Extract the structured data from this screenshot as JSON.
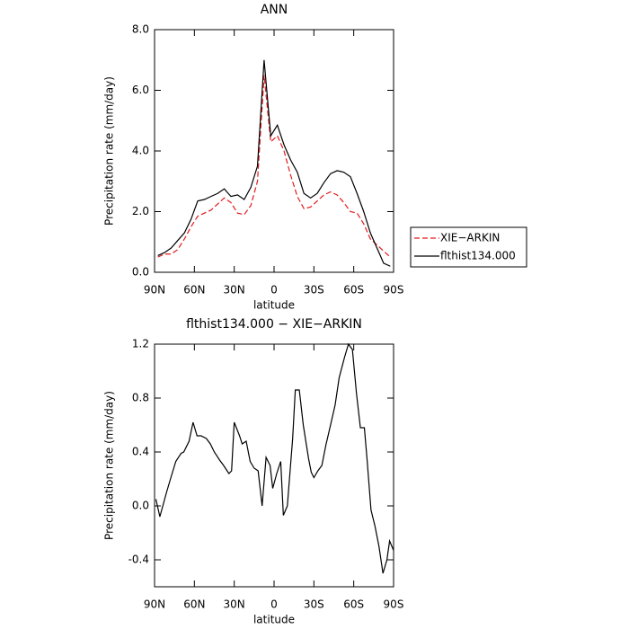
{
  "chart_data": [
    {
      "type": "line",
      "title": "ANN",
      "ylabel": "Precipitation rate (mm/day)",
      "xlabel": "latitude",
      "x": [
        87.5,
        82.5,
        77.5,
        72.5,
        67.5,
        62.5,
        57.5,
        52.5,
        47.5,
        42.5,
        37.5,
        32.5,
        27.5,
        22.5,
        17.5,
        12.5,
        7.5,
        2.5,
        -2.5,
        -7.5,
        -12.5,
        -17.5,
        -22.5,
        -27.5,
        -32.5,
        -37.5,
        -42.5,
        -47.5,
        -52.5,
        -57.5,
        -62.5,
        -67.5,
        -72.5,
        -77.5,
        -82.5,
        -87.5
      ],
      "series": [
        {
          "name": "XIE−ARKIN",
          "color": "#e31a1c",
          "style": "dashed",
          "values": [
            0.5,
            0.6,
            0.6,
            0.75,
            1.1,
            1.5,
            1.85,
            1.95,
            2.05,
            2.25,
            2.45,
            2.3,
            1.95,
            1.9,
            2.2,
            3.0,
            6.5,
            4.3,
            4.5,
            4.0,
            3.2,
            2.5,
            2.1,
            2.15,
            2.35,
            2.55,
            2.65,
            2.55,
            2.3,
            2.0,
            1.95,
            1.6,
            1.1,
            0.9,
            0.7,
            0.5
          ]
        },
        {
          "name": "flthist134.000",
          "color": "#000000",
          "style": "solid",
          "values": [
            0.55,
            0.65,
            0.8,
            1.05,
            1.3,
            1.75,
            2.35,
            2.4,
            2.5,
            2.6,
            2.75,
            2.5,
            2.55,
            2.4,
            2.8,
            3.5,
            7.0,
            4.5,
            4.85,
            4.2,
            3.7,
            3.3,
            2.6,
            2.45,
            2.6,
            2.95,
            3.25,
            3.35,
            3.3,
            3.15,
            2.6,
            2.0,
            1.3,
            0.8,
            0.3,
            0.2
          ]
        }
      ],
      "xlim": [
        90,
        -90
      ],
      "xticks": [
        {
          "value": 90,
          "label": "90N"
        },
        {
          "value": 60,
          "label": "60N"
        },
        {
          "value": 30,
          "label": "30N"
        },
        0,
        {
          "value": -30,
          "label": "30S"
        },
        {
          "value": -60,
          "label": "60S"
        },
        {
          "value": -90,
          "label": "90S"
        }
      ],
      "ylim": [
        0,
        8
      ],
      "yticks": [
        {
          "value": 0,
          "label": "0.0"
        },
        {
          "value": 2,
          "label": "2.0"
        },
        {
          "value": 4,
          "label": "4.0"
        },
        {
          "value": 6,
          "label": "6.0"
        },
        {
          "value": 8,
          "label": "8.0"
        }
      ],
      "legend": "right"
    },
    {
      "type": "line",
      "title": "flthist134.000 − XIE−ARKIN",
      "ylabel": "Precipitation rate (mm/day)",
      "xlabel": "latitude",
      "x": [
        89,
        86,
        81,
        78,
        74,
        70,
        68,
        64,
        61,
        58,
        55,
        51,
        48,
        45,
        41,
        38,
        34,
        32,
        30,
        26,
        24,
        21,
        18,
        15,
        12,
        9,
        6,
        3,
        1,
        -2,
        -5,
        -7,
        -10,
        -14,
        -16,
        -19,
        -22,
        -26,
        -28,
        -30,
        -33,
        -36,
        -39,
        -43,
        -46,
        -49,
        -53,
        -56,
        -59,
        -62,
        -65,
        -68,
        -70,
        -73,
        -76,
        -79,
        -82,
        -85,
        -87,
        -90
      ],
      "values": [
        0.05,
        -0.08,
        0.1,
        0.2,
        0.33,
        0.39,
        0.4,
        0.48,
        0.62,
        0.52,
        0.52,
        0.5,
        0.46,
        0.4,
        0.34,
        0.3,
        0.24,
        0.26,
        0.62,
        0.52,
        0.46,
        0.48,
        0.33,
        0.28,
        0.26,
        0.0,
        0.36,
        0.3,
        0.13,
        0.24,
        0.33,
        -0.07,
        0.0,
        0.5,
        0.86,
        0.86,
        0.6,
        0.35,
        0.25,
        0.21,
        0.26,
        0.3,
        0.45,
        0.62,
        0.75,
        0.95,
        1.1,
        1.2,
        1.16,
        0.84,
        0.58,
        0.58,
        0.35,
        -0.03,
        -0.15,
        -0.3,
        -0.5,
        -0.4,
        -0.26,
        -0.33
      ],
      "color": "#000000",
      "xlim": [
        90,
        -90
      ],
      "xticks": [
        {
          "value": 90,
          "label": "90N"
        },
        {
          "value": 60,
          "label": "60N"
        },
        {
          "value": 30,
          "label": "30N"
        },
        0,
        {
          "value": -30,
          "label": "30S"
        },
        {
          "value": -60,
          "label": "60S"
        },
        {
          "value": -90,
          "label": "90S"
        }
      ],
      "ylim": [
        -0.6,
        1.2
      ],
      "yticks": [
        -0.4,
        {
          "value": 0,
          "label": "0.0"
        },
        0.4,
        0.8,
        1.2
      ]
    }
  ]
}
